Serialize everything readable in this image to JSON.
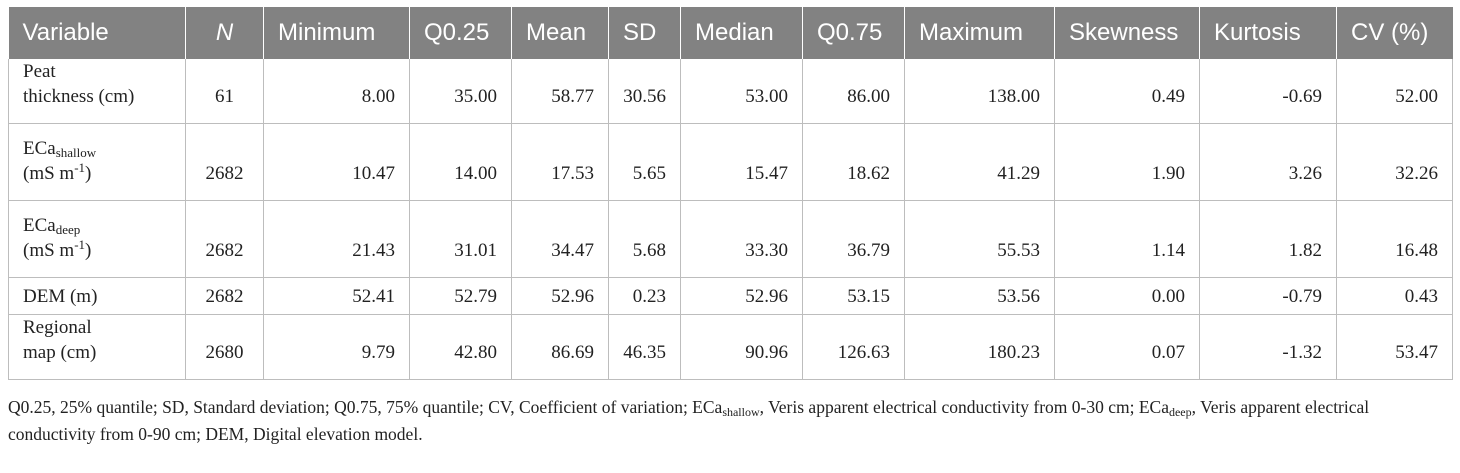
{
  "table": {
    "headers": [
      "Variable",
      "N",
      "Minimum",
      "Q0.25",
      "Mean",
      "SD",
      "Median",
      "Q0.75",
      "Maximum",
      "Skewness",
      "Kurtosis",
      "CV (%)"
    ],
    "rows": [
      {
        "var": {
          "line1": "Peat",
          "line1_sub": "",
          "line2": "thickness (cm)",
          "line2_sup": "",
          "line2_tail": ""
        },
        "values": [
          "61",
          "8.00",
          "35.00",
          "58.77",
          "30.56",
          "53.00",
          "86.00",
          "138.00",
          "0.49",
          "-0.69",
          "52.00"
        ]
      },
      {
        "var": {
          "line1": "ECa",
          "line1_sub": "shallow",
          "line2": "(mS m",
          "line2_sup": "-1",
          "line2_tail": ")"
        },
        "values": [
          "2682",
          "10.47",
          "14.00",
          "17.53",
          "5.65",
          "15.47",
          "18.62",
          "41.29",
          "1.90",
          "3.26",
          "32.26"
        ]
      },
      {
        "var": {
          "line1": "ECa",
          "line1_sub": "deep",
          "line2": "(mS m",
          "line2_sup": "-1",
          "line2_tail": ")"
        },
        "values": [
          "2682",
          "21.43",
          "31.01",
          "34.47",
          "5.68",
          "33.30",
          "36.79",
          "55.53",
          "1.14",
          "1.82",
          "16.48"
        ]
      },
      {
        "var": {
          "line1": "DEM (m)",
          "line1_sub": "",
          "line2": "",
          "line2_sup": "",
          "line2_tail": ""
        },
        "values": [
          "2682",
          "52.41",
          "52.79",
          "52.96",
          "0.23",
          "52.96",
          "53.15",
          "53.56",
          "0.00",
          "-0.79",
          "0.43"
        ]
      },
      {
        "var": {
          "line1": "Regional",
          "line1_sub": "",
          "line2": "map (cm)",
          "line2_sup": "",
          "line2_tail": ""
        },
        "values": [
          "2680",
          "9.79",
          "42.80",
          "86.69",
          "46.35",
          "90.96",
          "126.63",
          "180.23",
          "0.07",
          "-1.32",
          "53.47"
        ]
      }
    ]
  },
  "footnote": {
    "part1": "Q0.25, 25% quantile; SD, Standard deviation; Q0.75, 75% quantile; CV, Coefficient of variation; ECa",
    "sub1": "shallow",
    "part2": ", Veris apparent electrical conductivity from 0-30 cm; ECa",
    "sub2": "deep",
    "part3": ", Veris apparent electrical",
    "part4": "conductivity from 0-90 cm; DEM, Digital elevation model."
  }
}
